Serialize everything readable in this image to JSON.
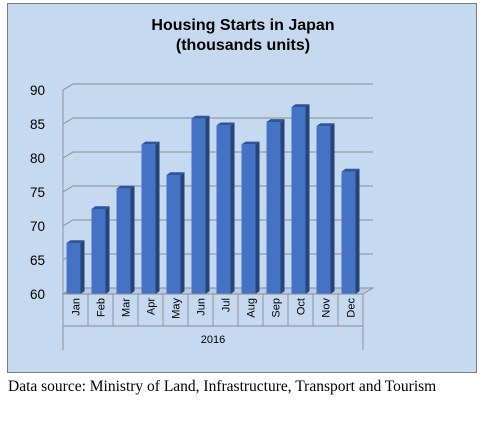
{
  "chart_data": {
    "type": "bar",
    "title": "Housing Starts in Japan",
    "subtitle": "(thousands units)",
    "categories": [
      "Jan",
      "Feb",
      "Mar",
      "Apr",
      "May",
      "Jun",
      "Jul",
      "Aug",
      "Sep",
      "Oct",
      "Nov",
      "Dec"
    ],
    "group_label": "2016",
    "values": [
      67.5,
      72.5,
      75.5,
      82.0,
      77.5,
      85.8,
      84.8,
      82.0,
      85.3,
      87.5,
      84.7,
      78.0
    ],
    "ylim": [
      60,
      90
    ],
    "yticks": [
      60,
      65,
      70,
      75,
      80,
      85,
      90
    ],
    "grid": true,
    "style": "3d-column",
    "bar_color": "#4472c4",
    "background_color": "#c5d9f1"
  },
  "source_note": "Data source: Ministry of Land, Infrastructure, Transport and Tourism"
}
